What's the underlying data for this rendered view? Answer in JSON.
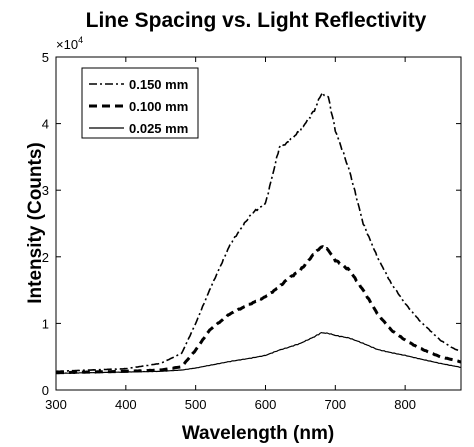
{
  "chart_data": {
    "type": "line",
    "title": "Line Spacing vs. Light Reflectivity",
    "xlabel": "Wavelength (nm)",
    "ylabel": "Intensity (Counts)",
    "xlim": [
      300,
      880
    ],
    "ylim": [
      0,
      50000
    ],
    "x_ticks": [
      300,
      400,
      500,
      600,
      700,
      800
    ],
    "y_ticks": [
      0,
      1,
      2,
      3,
      4,
      5
    ],
    "y_multiplier": {
      "base": "×10",
      "exponent": "4"
    },
    "grid": false,
    "legend_position": "top-left",
    "x": [
      300,
      350,
      400,
      450,
      480,
      500,
      520,
      550,
      580,
      600,
      620,
      630,
      650,
      670,
      680,
      690,
      700,
      720,
      740,
      760,
      780,
      800,
      820,
      850,
      870,
      880
    ],
    "series": [
      {
        "name": "0.150 mm",
        "dash": "8,3,2,3",
        "width": 1.6,
        "values": [
          2800,
          3000,
          3200,
          4000,
          5500,
          10000,
          15000,
          22000,
          26500,
          28000,
          36500,
          37000,
          39000,
          42000,
          44500,
          44000,
          39000,
          33000,
          25000,
          20000,
          16000,
          13000,
          10500,
          7500,
          6200,
          5800
        ]
      },
      {
        "name": "0.100 mm",
        "dash": "8,5",
        "width": 3,
        "values": [
          2600,
          2700,
          2800,
          3000,
          3500,
          6000,
          9000,
          11500,
          13000,
          14000,
          15500,
          16500,
          18000,
          20500,
          21500,
          21000,
          19500,
          18000,
          15000,
          11500,
          9000,
          7500,
          6300,
          5000,
          4500,
          4200
        ]
      },
      {
        "name": "0.025 mm",
        "dash": "",
        "width": 1.2,
        "values": [
          2500,
          2600,
          2700,
          2800,
          3000,
          3300,
          3700,
          4300,
          4800,
          5200,
          6000,
          6300,
          7000,
          8000,
          8600,
          8500,
          8200,
          7800,
          7000,
          6100,
          5600,
          5200,
          4700,
          4000,
          3600,
          3400
        ]
      }
    ]
  }
}
